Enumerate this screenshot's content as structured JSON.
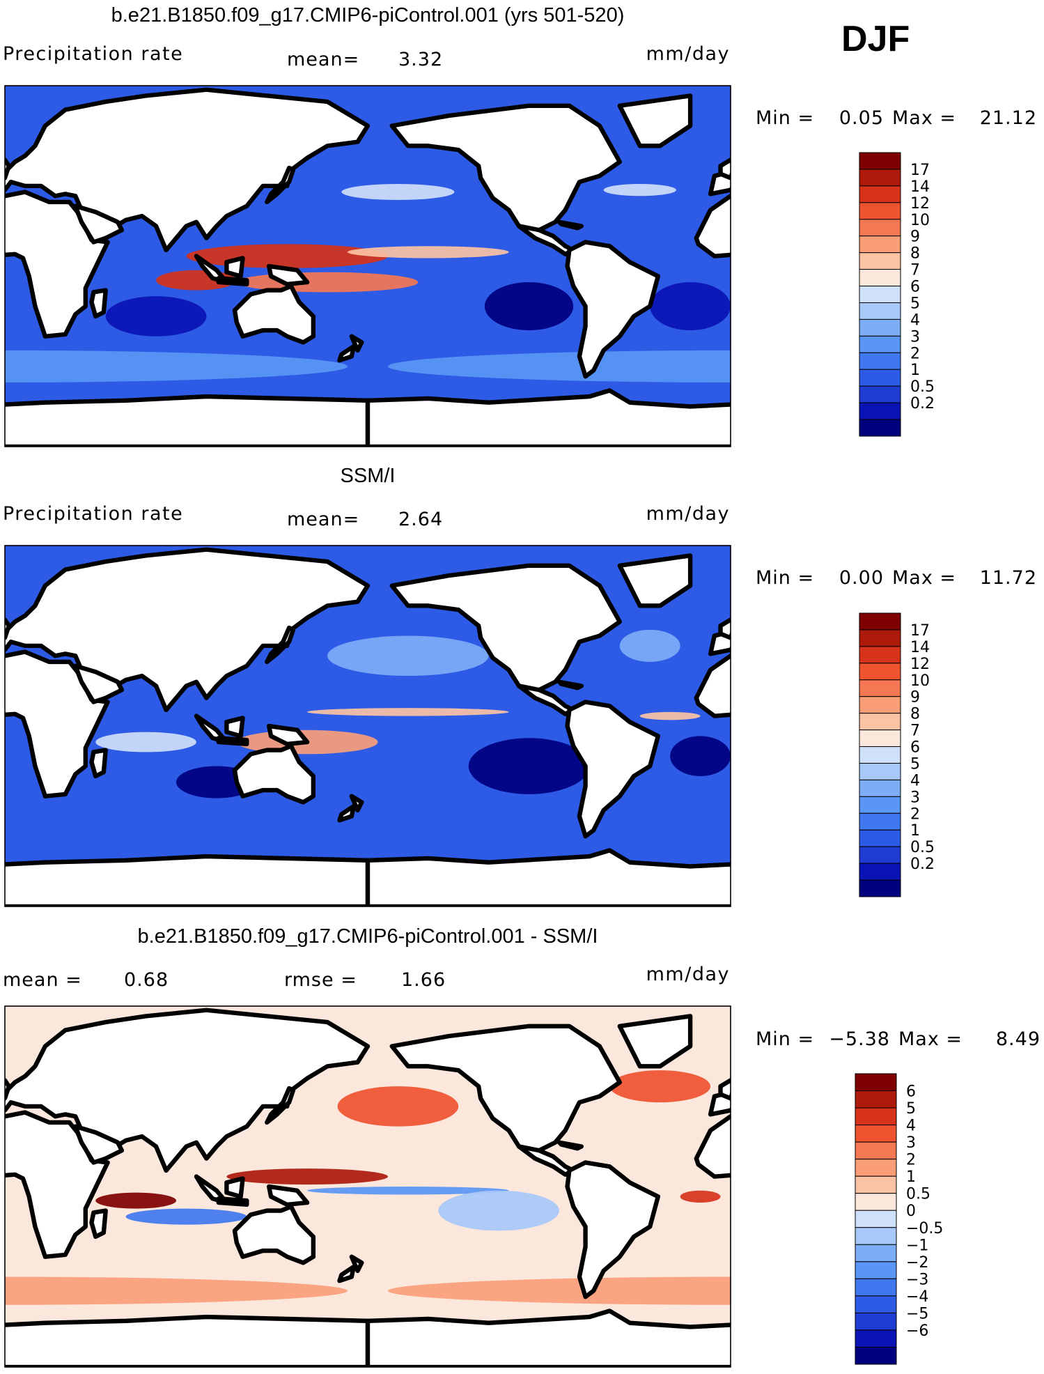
{
  "season": "DJF",
  "units": "mm/day",
  "colors": {
    "full_scale": [
      "#00007f",
      "#0a14b4",
      "#1e3cd2",
      "#2d5be6",
      "#3f78ef",
      "#5a96f5",
      "#7eadf7",
      "#a7c8f9",
      "#cfe0fb",
      "#fbe7dc",
      "#fcc2a4",
      "#fa9e78",
      "#f57753",
      "#ef5330",
      "#d6331a",
      "#ad1a0c",
      "#7f0000"
    ],
    "diff_scale": [
      "#00007f",
      "#0a14b4",
      "#1e3cd2",
      "#2d5be6",
      "#3f78ef",
      "#5a96f5",
      "#7eadf7",
      "#a7c8f9",
      "#cfe0fb",
      "#fbe7dc",
      "#fcc2a4",
      "#fa9e78",
      "#f57753",
      "#ef5330",
      "#d6331a",
      "#ad1a0c",
      "#7f0000"
    ],
    "land": "#ffffff",
    "coastline": "#000000"
  },
  "panels": [
    {
      "id": "model",
      "title": "b.e21.B1850.f09_g17.CMIP6-piControl.001 (yrs 501-520)",
      "left_label": "Precipitation rate",
      "stat1_label": "mean=",
      "stat1_value": "3.32",
      "units": "mm/day",
      "min_label": "Min =",
      "min_value": "0.05",
      "max_label": "Max =",
      "max_value": "21.12",
      "colorbar_ticks": [
        "17",
        "14",
        "12",
        "10",
        "9",
        "8",
        "7",
        "6",
        "5",
        "4",
        "3",
        "2",
        "1",
        "0.5",
        "0.2"
      ],
      "field": {
        "type": "precip",
        "background_level": 3,
        "features": [
          {
            "lon": 140,
            "lat": 5,
            "rx": 50,
            "ry": 6,
            "level": 14
          },
          {
            "lon": 160,
            "lat": -8,
            "rx": 45,
            "ry": 5,
            "level": 12
          },
          {
            "lon": 95,
            "lat": -7,
            "rx": 20,
            "ry": 5,
            "level": 14
          },
          {
            "lon": -150,
            "lat": 7,
            "rx": 40,
            "ry": 3,
            "level": 10
          },
          {
            "lon": -165,
            "lat": 37,
            "rx": 28,
            "ry": 4,
            "level": 8
          },
          {
            "lon": -45,
            "lat": 38,
            "rx": 18,
            "ry": 3,
            "level": 8
          },
          {
            "lon": -100,
            "lat": -20,
            "rx": 22,
            "ry": 12,
            "level": 0
          },
          {
            "lon": 75,
            "lat": -25,
            "rx": 25,
            "ry": 10,
            "level": 1
          },
          {
            "lon": -20,
            "lat": -20,
            "rx": 20,
            "ry": 12,
            "level": 1
          },
          {
            "lon": 0,
            "lat": -50,
            "rx": 170,
            "ry": 8,
            "level": 5
          }
        ]
      }
    },
    {
      "id": "obs",
      "title": "SSM/I",
      "left_label": "Precipitation rate",
      "stat1_label": "mean=",
      "stat1_value": "2.64",
      "units": "mm/day",
      "min_label": "Min =",
      "min_value": "0.00",
      "max_label": "Max =",
      "max_value": "11.72",
      "colorbar_ticks": [
        "17",
        "14",
        "12",
        "10",
        "9",
        "8",
        "7",
        "6",
        "5",
        "4",
        "3",
        "2",
        "1",
        "0.5",
        "0.2"
      ],
      "field": {
        "type": "precip",
        "background_level": 3,
        "features": [
          {
            "lon": 150,
            "lat": -8,
            "rx": 35,
            "ry": 6,
            "level": 11
          },
          {
            "lon": -160,
            "lat": 7,
            "rx": 50,
            "ry": 2,
            "level": 10
          },
          {
            "lon": -30,
            "lat": 5,
            "rx": 15,
            "ry": 2,
            "level": 10
          },
          {
            "lon": 70,
            "lat": -8,
            "rx": 25,
            "ry": 5,
            "level": 8
          },
          {
            "lon": -100,
            "lat": -20,
            "rx": 30,
            "ry": 14,
            "level": 0
          },
          {
            "lon": 105,
            "lat": -28,
            "rx": 20,
            "ry": 8,
            "level": 0
          },
          {
            "lon": -15,
            "lat": -15,
            "rx": 15,
            "ry": 10,
            "level": 0
          },
          {
            "lon": -160,
            "lat": 35,
            "rx": 40,
            "ry": 10,
            "level": 6
          },
          {
            "lon": -40,
            "lat": 40,
            "rx": 15,
            "ry": 8,
            "level": 6
          }
        ]
      }
    },
    {
      "id": "diff",
      "title": "b.e21.B1850.f09_g17.CMIP6-piControl.001 - SSM/I",
      "left_label": "mean =",
      "left_value": "0.68",
      "stat1_label": "rmse =",
      "stat1_value": "1.66",
      "units": "mm/day",
      "min_label": "Min =",
      "min_value": "−5.38",
      "max_label": "Max =",
      "max_value": "8.49",
      "colorbar_ticks": [
        "6",
        "5",
        "4",
        "3",
        "2",
        "1",
        "0.5",
        "0",
        "−0.5",
        "−1",
        "−2",
        "−3",
        "−4",
        "−5",
        "−6"
      ],
      "field": {
        "type": "diff",
        "background_level": 9,
        "features": [
          {
            "lon": 65,
            "lat": -7,
            "rx": 20,
            "ry": 4,
            "level": 16
          },
          {
            "lon": 150,
            "lat": 5,
            "rx": 40,
            "ry": 4,
            "level": 15
          },
          {
            "lon": -165,
            "lat": 40,
            "rx": 30,
            "ry": 10,
            "level": 13
          },
          {
            "lon": -35,
            "lat": 50,
            "rx": 25,
            "ry": 8,
            "level": 13
          },
          {
            "lon": -15,
            "lat": -5,
            "rx": 10,
            "ry": 3,
            "level": 14
          },
          {
            "lon": 90,
            "lat": -15,
            "rx": 30,
            "ry": 4,
            "level": 4
          },
          {
            "lon": -160,
            "lat": -2,
            "rx": 50,
            "ry": 2,
            "level": 5
          },
          {
            "lon": -115,
            "lat": -12,
            "rx": 30,
            "ry": 10,
            "level": 7
          },
          {
            "lon": 0,
            "lat": -52,
            "rx": 170,
            "ry": 7,
            "level": 11
          }
        ]
      }
    }
  ]
}
